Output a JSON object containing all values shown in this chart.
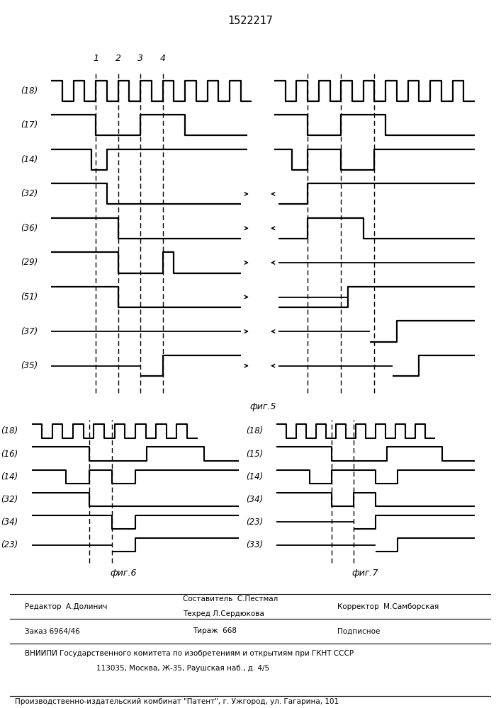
{
  "title": "1522217",
  "fig5_caption": "фиг.5",
  "fig6_caption": "фиг.6",
  "fig7_caption": "фиг.7",
  "labels5": [
    "(18)",
    "(17)",
    "(14)",
    "(32)",
    "(36)",
    "(29)",
    "(51)",
    "(37)",
    "(35)"
  ],
  "labels6": [
    "(18)",
    "(16)",
    "(14)",
    "(32)",
    "(34)",
    "(23)"
  ],
  "labels7": [
    "(18)",
    "(15)",
    "(14)",
    "(34)",
    "(23)",
    "(33)"
  ],
  "footer_col1_line1": "Редактор  А.Долинич",
  "footer_col2_line1": "Составитель  С.Пестмал",
  "footer_col2_line2": "Техред Л.Сердюкова",
  "footer_col3_line1": "Корректор  М.Самборская",
  "footer_order": "Заказ 6964/46",
  "footer_tirazh": "Тираж  668",
  "footer_podp": "Подписное",
  "footer_vniip": "ВНИИПИ Государственного комитета по изобретениям и открытиям при ГКНТ СССР",
  "footer_addr": "113035, Москва, Ж-35, Раушская наб., д. 4/5",
  "footer_plant": "Производственно-издательский комбинат \"Патент\", г. Ужгород, ул. Гагарина, 101"
}
